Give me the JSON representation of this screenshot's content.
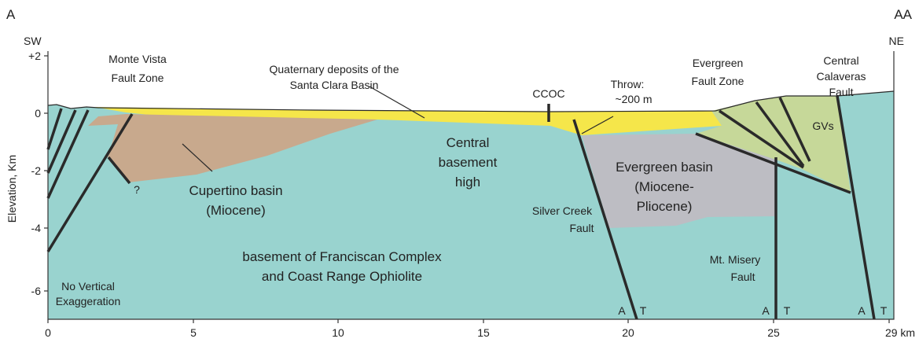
{
  "corners": {
    "left": "A",
    "right": "AA",
    "left_dir": "SW",
    "right_dir": "NE"
  },
  "y_axis": {
    "title": "Elevation, Km",
    "ticks": [
      "+2",
      "0",
      "-2",
      "-4",
      "-6"
    ]
  },
  "x_axis": {
    "ticks": [
      "0",
      "5",
      "10",
      "15",
      "20",
      "25",
      "29 km"
    ]
  },
  "labels": {
    "monte_vista": [
      "Monte Vista",
      "Fault Zone"
    ],
    "quaternary": [
      "Quaternary deposits of the",
      "Santa Clara Basin"
    ],
    "ccoc": "CCOC",
    "throw": [
      "Throw:",
      "~200 m"
    ],
    "evergreen_fault": [
      "Evergreen",
      "Fault Zone"
    ],
    "calaveras": [
      "Central",
      "Calaveras",
      "Fault"
    ],
    "gvs": "GVs",
    "central_high": [
      "Central",
      "basement",
      "high"
    ],
    "cupertino": [
      "Cupertino basin",
      "(Miocene)"
    ],
    "evergreen_basin": [
      "Evergreen basin",
      "(Miocene-",
      "Pliocene)"
    ],
    "silver_creek": [
      "Silver Creek",
      "Fault"
    ],
    "mt_misery": [
      "Mt. Misery",
      "Fault"
    ],
    "basement": [
      "basement of Franciscan Complex",
      "and Coast Range Ophiolite"
    ],
    "no_vert": [
      "No Vertical",
      "Exaggeration"
    ],
    "question": "?",
    "fault_sides": [
      "A",
      "T",
      "A",
      "T",
      "A",
      "T"
    ]
  }
}
